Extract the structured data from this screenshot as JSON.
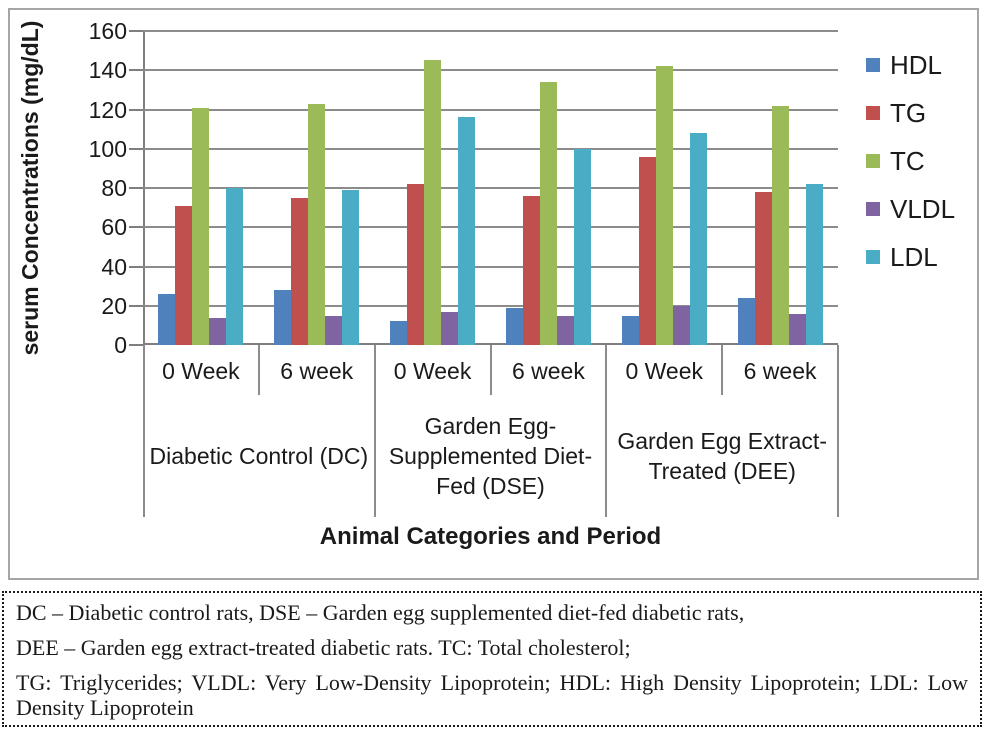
{
  "chart_data": {
    "type": "bar",
    "title": "",
    "ylabel": "serum Concentrations (mg/dL)",
    "xlabel": "Animal Categories and Period",
    "ylim": [
      0,
      160
    ],
    "ytick_step": 20,
    "grid": true,
    "legend_position": "right",
    "categories": [
      "0 Week",
      "6 week",
      "0 Week",
      "6 week",
      "0 Week",
      "6 week"
    ],
    "groups": [
      {
        "label": "Diabetic Control (DC)"
      },
      {
        "label": "Garden Egg-Supplemented Diet-Fed (DSE)"
      },
      {
        "label": "Garden Egg Extract-Treated (DEE)"
      }
    ],
    "series": [
      {
        "name": "HDL",
        "color": "#4F81BD",
        "values": [
          26,
          28,
          12,
          19,
          15,
          24
        ]
      },
      {
        "name": "TG",
        "color": "#C0504D",
        "values": [
          71,
          75,
          82,
          76,
          96,
          78
        ]
      },
      {
        "name": "TC",
        "color": "#9BBB59",
        "values": [
          121,
          123,
          145,
          134,
          142,
          122
        ]
      },
      {
        "name": "VLDL",
        "color": "#8064A2",
        "values": [
          14,
          15,
          17,
          15,
          20,
          16
        ]
      },
      {
        "name": "LDL",
        "color": "#4BACC6",
        "values": [
          80,
          79,
          116,
          100,
          108,
          82
        ]
      }
    ]
  },
  "footer": {
    "line1": "DC – Diabetic control rats, DSE – Garden egg supplemented diet-fed diabetic rats,",
    "line2": "DEE – Garden egg extract-treated diabetic rats. TC: Total cholesterol;",
    "line3": "TG: Triglycerides; VLDL: Very Low-Density Lipoprotein; HDL: High Density Lipoprotein; LDL: Low Density Lipoprotein"
  }
}
